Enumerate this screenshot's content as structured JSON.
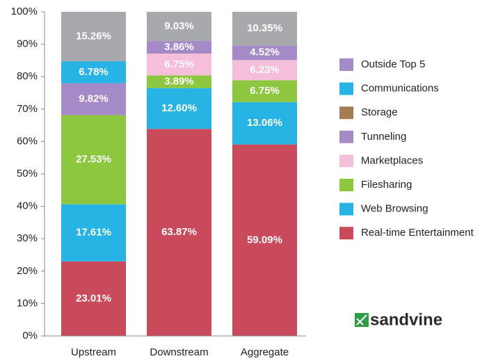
{
  "chart_data": {
    "type": "stacked_bar",
    "categories": [
      "Upstream",
      "Downstream",
      "Aggregate"
    ],
    "series": [
      {
        "color": "#c94a5a",
        "values": [
          23.01,
          63.87,
          59.09
        ],
        "value_labels": [
          "23.01%",
          "63.87%",
          "59.09%"
        ]
      },
      {
        "color": "#27b4e4",
        "values": [
          17.61,
          12.6,
          13.06
        ],
        "value_labels": [
          "17.61%",
          "12.60%",
          "13.06%"
        ]
      },
      {
        "color": "#8dc63f",
        "values": [
          27.53,
          3.89,
          6.75
        ],
        "value_labels": [
          "27.53%",
          "3.89%",
          "6.75%"
        ]
      },
      {
        "color": "#f5bfd9",
        "values": [
          null,
          6.75,
          6.23
        ],
        "value_labels": [
          null,
          "6.75%",
          "6.23%"
        ]
      },
      {
        "color": "#a48ac6",
        "values": [
          9.82,
          3.86,
          4.52
        ],
        "value_labels": [
          "9.82%",
          "3.86%",
          "4.52%"
        ]
      },
      {
        "color": "#27b4e4",
        "values": [
          6.78,
          null,
          null
        ],
        "value_labels": [
          "6.78%",
          null,
          null
        ]
      },
      {
        "color": "#a7a9ac",
        "values": [
          15.26,
          9.03,
          10.35
        ],
        "value_labels": [
          "15.26%",
          "9.03%",
          "10.35%"
        ]
      }
    ],
    "legend": [
      {
        "name": "Outside Top 5",
        "color": "#a48ac6"
      },
      {
        "name": "Communications",
        "color": "#27b4e4"
      },
      {
        "name": "Storage",
        "color": "#a57c52"
      },
      {
        "name": "Tunneling",
        "color": "#a48ac6"
      },
      {
        "name": "Marketplaces",
        "color": "#f5bfd9"
      },
      {
        "name": "Filesharing",
        "color": "#8dc63f"
      },
      {
        "name": "Web Browsing",
        "color": "#27b4e4"
      },
      {
        "name": "Real-time Entertainment",
        "color": "#c94a5a"
      }
    ],
    "ylim": [
      0,
      100
    ],
    "yticks": [
      {
        "value": 0,
        "label": "0%"
      },
      {
        "value": 10,
        "label": "10%"
      },
      {
        "value": 20,
        "label": "20%"
      },
      {
        "value": 30,
        "label": "30%"
      },
      {
        "value": 40,
        "label": "40%"
      },
      {
        "value": 50,
        "label": "50%"
      },
      {
        "value": 60,
        "label": "60%"
      },
      {
        "value": 70,
        "label": "70%"
      },
      {
        "value": 80,
        "label": "80%"
      },
      {
        "value": 90,
        "label": "90%"
      },
      {
        "value": 100,
        "label": "100%"
      }
    ],
    "logo": "sandvine"
  }
}
